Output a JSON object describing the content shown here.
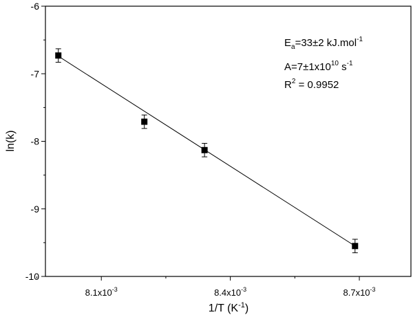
{
  "chart_data": {
    "type": "scatter",
    "xlabel": "1/T (K",
    "xlabel_sup": "-1",
    "xlabel_suffix": ")",
    "ylabel": "ln(k)",
    "xlim": [
      0.00797,
      0.00882
    ],
    "ylim": [
      -10,
      -6
    ],
    "xticks": [
      {
        "value": 0.0081,
        "mantissa": "8.1x10",
        "exp": "-3"
      },
      {
        "value": 0.0084,
        "mantissa": "8.4x10",
        "exp": "-3"
      },
      {
        "value": 0.0087,
        "mantissa": "8.7x10",
        "exp": "-3"
      }
    ],
    "xminor": [
      0.00795,
      0.00825,
      0.00855,
      0.00885
    ],
    "yticks": [
      {
        "value": -10,
        "label": "-10"
      },
      {
        "value": -9,
        "label": "-9"
      },
      {
        "value": -8,
        "label": "-8"
      },
      {
        "value": -7,
        "label": "-7"
      },
      {
        "value": -6,
        "label": "-6"
      }
    ],
    "yminor": [
      -9.5,
      -8.5,
      -7.5,
      -6.5
    ],
    "points": [
      {
        "x": 0.008,
        "y": -6.73,
        "err": 0.1
      },
      {
        "x": 0.0082,
        "y": -7.71,
        "err": 0.1
      },
      {
        "x": 0.00834,
        "y": -8.13,
        "err": 0.1
      },
      {
        "x": 0.00869,
        "y": -9.55,
        "err": 0.1
      }
    ],
    "fit_line": {
      "x": [
        0.008,
        0.00869
      ],
      "y": [
        -6.74,
        -9.55
      ]
    },
    "annotations": {
      "ea_prefix": "E",
      "ea_sub": "a",
      "ea_value": "=33±2 kJ.mol",
      "ea_sup": "-1",
      "a_value": "A=7±1x10",
      "a_sup": "10",
      "a_suffix": " s",
      "a_sup2": "-1",
      "r2_prefix": "R",
      "r2_sup": "2",
      "r2_value": " = 0.9952"
    },
    "grid": false,
    "legend": "none"
  }
}
